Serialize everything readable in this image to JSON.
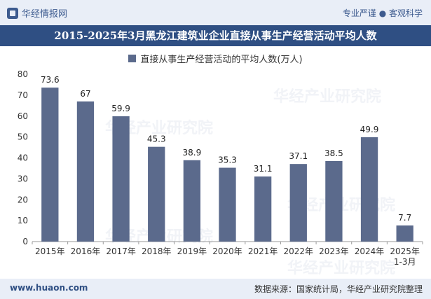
{
  "header": {
    "brand": "华经情报网",
    "tags": "专业严谨 ● 客观科学"
  },
  "watermark": "华经产业研究院",
  "footer": {
    "url": "www.huaon.com",
    "source": "数据来源：国家统计局，华经产业研究院整理"
  },
  "chart_data": {
    "type": "bar",
    "title": "2015-2025年3月黑龙江建筑业企业直接从事生产经营活动平均人数",
    "series": [
      {
        "name": "直接从事生产经营活动的平均人数(万人)",
        "color": "#5b6a8c",
        "values": [
          73.6,
          67,
          59.9,
          45.3,
          38.9,
          35.3,
          31.1,
          37.1,
          38.5,
          49.9,
          7.7
        ],
        "labels": [
          "73.6",
          "67",
          "59.9",
          "45.3",
          "38.9",
          "35.3",
          "31.1",
          "37.1",
          "38.5",
          "49.9",
          "7.7"
        ]
      }
    ],
    "categories": [
      "2015年",
      "2016年",
      "2017年",
      "2018年",
      "2019年",
      "2020年",
      "2021年",
      "2022年",
      "2023年",
      "2024年",
      "2025年\n1-3月"
    ],
    "yticks": [
      "0",
      "10",
      "20",
      "30",
      "40",
      "50",
      "60",
      "70",
      "80"
    ],
    "ylim": [
      0,
      80
    ],
    "grid": false,
    "legend_position": "top-center"
  }
}
